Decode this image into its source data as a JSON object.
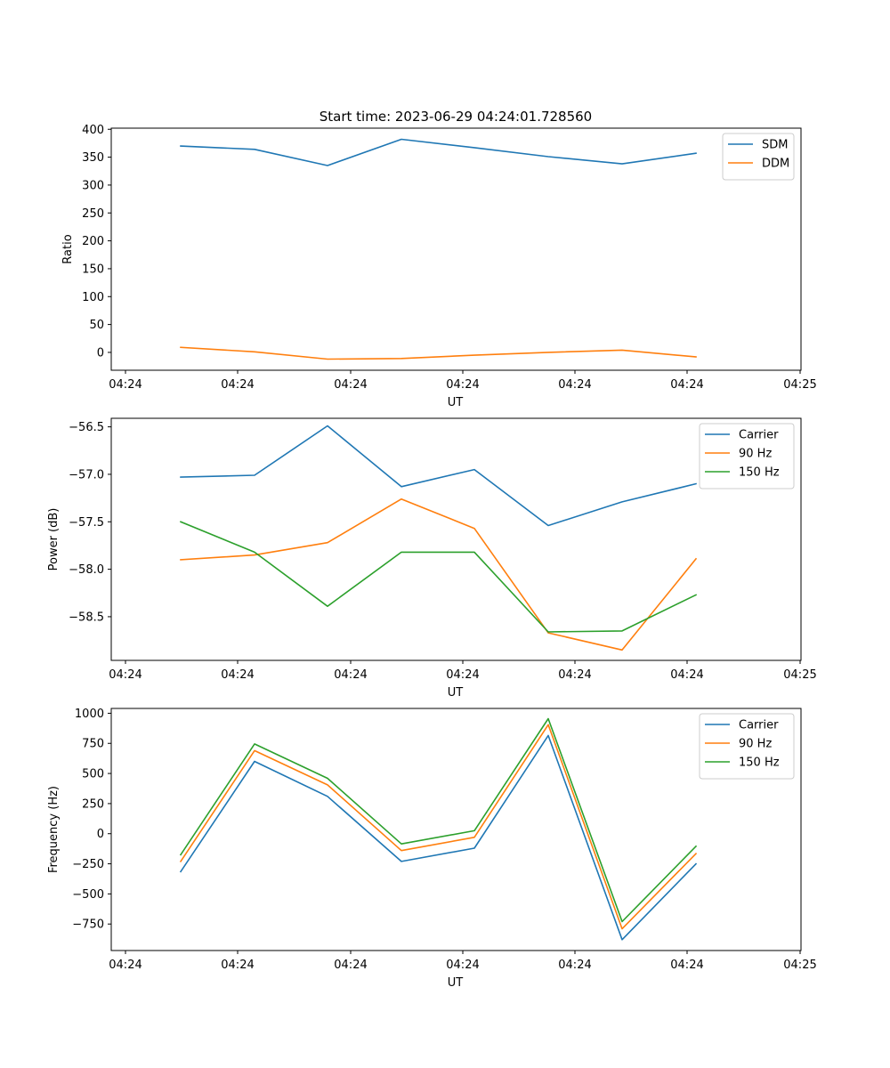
{
  "figure": {
    "title": "Start time: 2023-06-29 04:24:01.728560"
  },
  "colors": {
    "c0": "#1f77b4",
    "c1": "#ff7f0e",
    "c2": "#2ca02c",
    "axis": "#000000",
    "legend_border": "#cccccc",
    "background": "#ffffff"
  },
  "chart_data": [
    {
      "type": "line",
      "xlabel": "UT",
      "ylabel": "Ratio",
      "x_tick_labels": [
        "04:24",
        "04:24",
        "04:24",
        "04:24",
        "04:24",
        "04:24",
        "04:25"
      ],
      "ylim": [
        -32,
        402
      ],
      "y_ticks": [
        0,
        50,
        100,
        150,
        200,
        250,
        300,
        350,
        400
      ],
      "y_tick_labels": [
        "0",
        "50",
        "100",
        "150",
        "200",
        "250",
        "300",
        "350",
        "400"
      ],
      "grid": false,
      "legend_position": "top-right",
      "series": [
        {
          "name": "SDM",
          "color": "#1f77b4",
          "values": [
            370,
            364,
            335,
            382,
            367,
            351,
            338,
            357
          ]
        },
        {
          "name": "DDM",
          "color": "#ff7f0e",
          "values": [
            9,
            1,
            -12,
            -11,
            -5,
            0,
            4,
            -8
          ]
        }
      ]
    },
    {
      "type": "line",
      "xlabel": "UT",
      "ylabel": "Power (dB)",
      "x_tick_labels": [
        "04:24",
        "04:24",
        "04:24",
        "04:24",
        "04:24",
        "04:24",
        "04:25"
      ],
      "ylim": [
        -58.96,
        -56.41
      ],
      "y_ticks": [
        -58.5,
        -58.0,
        -57.5,
        -57.0,
        -56.5
      ],
      "y_tick_labels": [
        "−58.5",
        "−58.0",
        "−57.5",
        "−57.0",
        "−56.5"
      ],
      "grid": false,
      "legend_position": "top-right",
      "series": [
        {
          "name": "Carrier",
          "color": "#1f77b4",
          "values": [
            -57.03,
            -57.01,
            -56.49,
            -57.13,
            -56.95,
            -57.54,
            -57.29,
            -57.1
          ]
        },
        {
          "name": "90 Hz",
          "color": "#ff7f0e",
          "values": [
            -57.9,
            -57.85,
            -57.72,
            -57.26,
            -57.57,
            -58.67,
            -58.85,
            -57.89
          ]
        },
        {
          "name": "150 Hz",
          "color": "#2ca02c",
          "values": [
            -57.5,
            -57.82,
            -58.39,
            -57.82,
            -57.82,
            -58.66,
            -58.65,
            -58.27
          ]
        }
      ]
    },
    {
      "type": "line",
      "xlabel": "UT",
      "ylabel": "Frequency (Hz)",
      "x_tick_labels": [
        "04:24",
        "04:24",
        "04:24",
        "04:24",
        "04:24",
        "04:24",
        "04:25"
      ],
      "ylim": [
        -970,
        1040
      ],
      "y_ticks": [
        -750,
        -500,
        -250,
        0,
        250,
        500,
        750,
        1000
      ],
      "y_tick_labels": [
        "−750",
        "−500",
        "−250",
        "0",
        "250",
        "500",
        "750",
        "1000"
      ],
      "grid": false,
      "legend_position": "top-right",
      "series": [
        {
          "name": "Carrier",
          "color": "#1f77b4",
          "values": [
            -315,
            600,
            310,
            -230,
            -120,
            815,
            -880,
            -250
          ]
        },
        {
          "name": "90 Hz",
          "color": "#ff7f0e",
          "values": [
            -230,
            690,
            405,
            -140,
            -30,
            905,
            -790,
            -165
          ]
        },
        {
          "name": "150 Hz",
          "color": "#2ca02c",
          "values": [
            -175,
            745,
            460,
            -85,
            25,
            955,
            -730,
            -105
          ]
        }
      ]
    }
  ]
}
